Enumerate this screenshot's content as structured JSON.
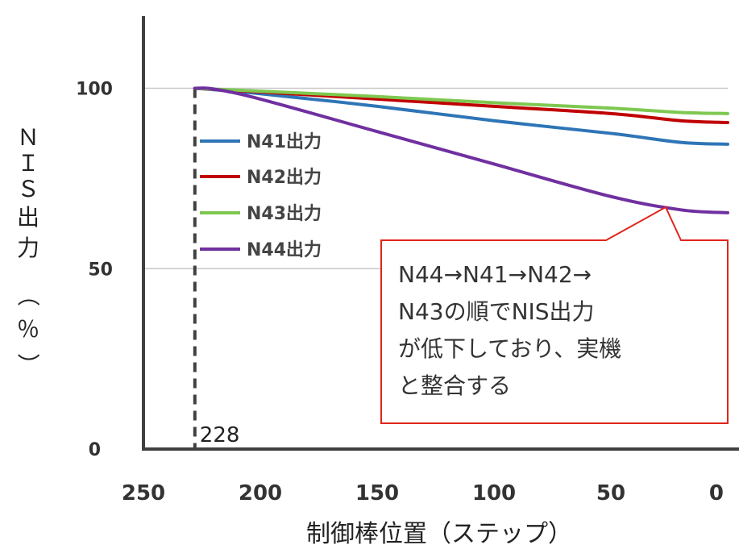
{
  "chart_data": {
    "type": "line",
    "xlabel": "制御棒位置（ステップ）",
    "ylabel": "ＮＩＳ出力（％）",
    "xlim": [
      250,
      0
    ],
    "ylim": [
      0,
      120
    ],
    "x_ticks": [
      "250",
      "200",
      "150",
      "100",
      "50",
      "0"
    ],
    "y_ticks": [
      "0",
      "50",
      "100"
    ],
    "grid": "horizontal at 50 and 100",
    "legend_position": "left",
    "series": [
      {
        "name": "N41出力",
        "color": "#2e75b6",
        "x": [
          228,
          200,
          150,
          100,
          50,
          20,
          0
        ],
        "y": [
          100,
          98.5,
          95,
          91,
          87.5,
          85,
          84.5
        ]
      },
      {
        "name": "N42出力",
        "color": "#c00000",
        "x": [
          228,
          200,
          150,
          100,
          50,
          20,
          0
        ],
        "y": [
          100,
          99,
          97,
          95,
          93,
          91,
          90.5
        ]
      },
      {
        "name": "N43出力",
        "color": "#7ec850",
        "x": [
          228,
          200,
          150,
          100,
          50,
          20,
          0
        ],
        "y": [
          100,
          99.2,
          97.7,
          96,
          94.5,
          93.3,
          93
        ]
      },
      {
        "name": "N44出力",
        "color": "#7030a0",
        "x": [
          228,
          220,
          200,
          150,
          100,
          50,
          20,
          0
        ],
        "y": [
          100,
          99.8,
          97,
          88,
          79,
          70,
          66.3,
          65.5
        ]
      }
    ],
    "annotations": [
      {
        "text": "228",
        "x": 228,
        "style": "dashed vertical line"
      },
      {
        "text_lines": [
          "N44→N41→N42→",
          "N43の順でNIS出力",
          "が低下しており、実機",
          "と整合する"
        ],
        "style": "red-bordered callout pointing to N44 line"
      }
    ]
  }
}
